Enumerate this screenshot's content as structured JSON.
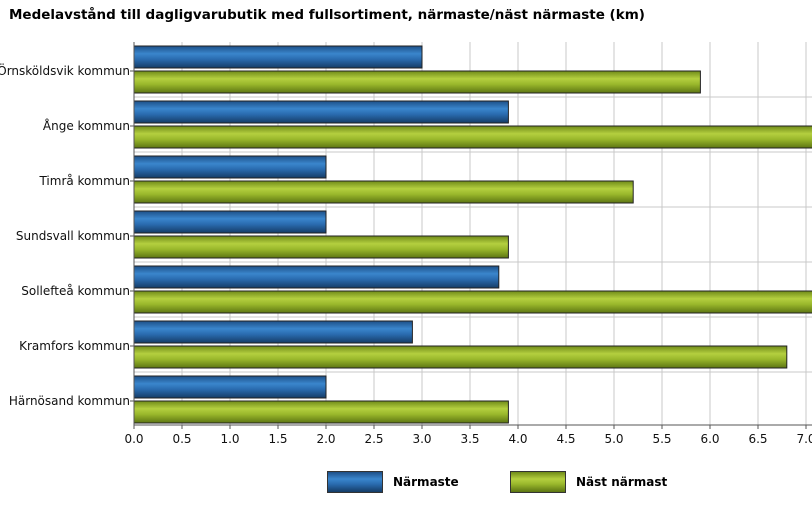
{
  "chart_data": {
    "type": "bar",
    "orientation": "horizontal",
    "title": "Medelavstånd till dagligvarubutik med fullsortiment, närmaste/näst närmaste (km)",
    "categories": [
      "Örnsköldsvik kommun",
      "Ånge kommun",
      "Timrå kommun",
      "Sundsvall kommun",
      "Sollefteå kommun",
      "Kramfors kommun",
      "Härnösand kommun"
    ],
    "series": [
      {
        "name": "Närmaste",
        "color": "#2a6cb0",
        "values": [
          3.0,
          3.9,
          2.0,
          2.0,
          3.8,
          2.9,
          2.0
        ]
      },
      {
        "name": "Näst närmast",
        "color": "#9ab82c",
        "values": [
          5.9,
          7.2,
          5.2,
          3.9,
          7.3,
          6.8,
          3.9
        ]
      }
    ],
    "xticks": [
      "0.0",
      "0.5",
      "1.0",
      "1.5",
      "2.0",
      "2.5",
      "3.0",
      "3.5",
      "4.0",
      "4.5",
      "5.0",
      "5.5",
      "6.0",
      "6.5",
      "7.0"
    ],
    "xlim": [
      0,
      7.0
    ],
    "grid": true,
    "legend_position": "bottom"
  }
}
